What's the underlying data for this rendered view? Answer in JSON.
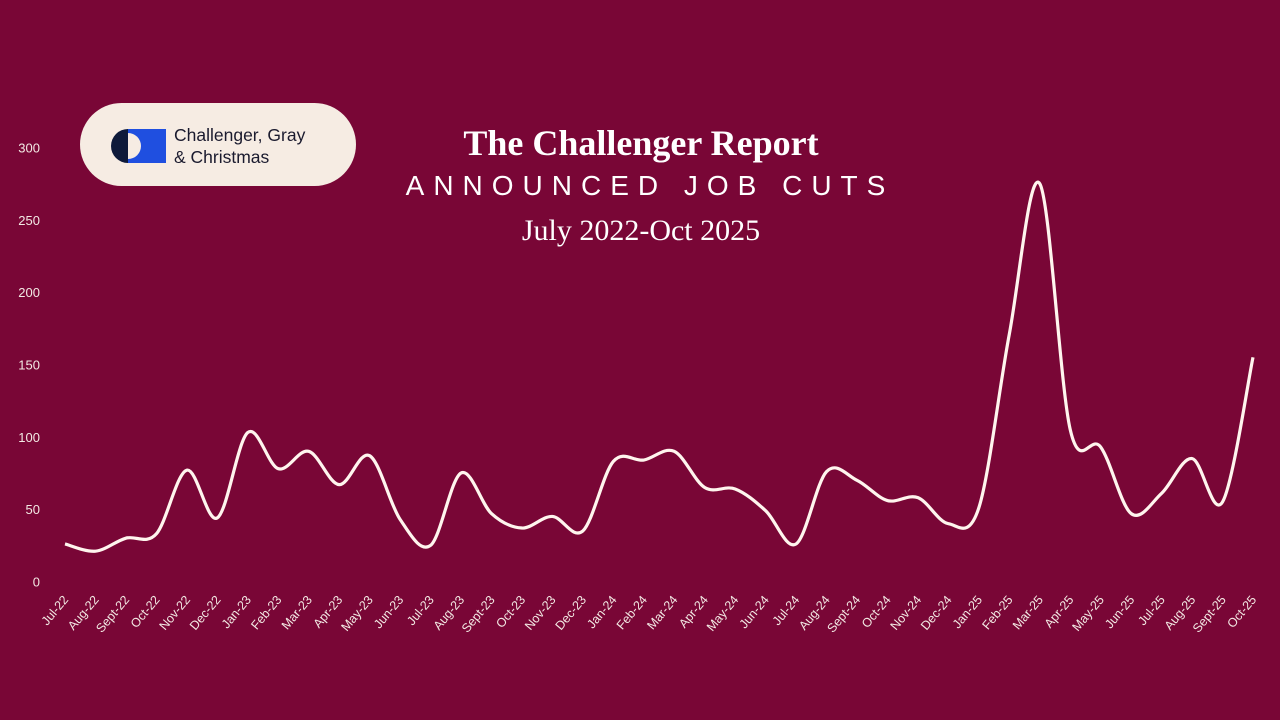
{
  "logo": {
    "line1": "Challenger, Gray",
    "line2": "& Christmas"
  },
  "chart_data": {
    "type": "line",
    "title": "The Challenger Report",
    "subtitle": "ANNOUNCED JOB CUTS",
    "date_range": "July 2022-Oct 2025",
    "color": "#fff5ee",
    "smooth": true,
    "grid": false,
    "categories": [
      "Jul-22",
      "Aug-22",
      "Sept-22",
      "Oct-22",
      "Nov-22",
      "Dec-22",
      "Jan-23",
      "Feb-23",
      "Mar-23",
      "Apr-23",
      "May-23",
      "Jun-23",
      "Jul-23",
      "Aug-23",
      "Sept-23",
      "Oct-23",
      "Nov-23",
      "Dec-23",
      "Jan-24",
      "Feb-24",
      "Mar-24",
      "Apr-24",
      "May-24",
      "Jun-24",
      "Jul-24",
      "Aug-24",
      "Sept-24",
      "Oct-24",
      "Nov-24",
      "Dec-24",
      "Jan-25",
      "Feb-25",
      "Mar-25",
      "Apr-25",
      "May-25",
      "Jun-25",
      "Jul-25",
      "Aug-25",
      "Sept-25",
      "Oct-25"
    ],
    "values": [
      27,
      22,
      31,
      34,
      78,
      45,
      104,
      79,
      91,
      68,
      88,
      44,
      26,
      76,
      48,
      38,
      46,
      36,
      84,
      85,
      91,
      66,
      65,
      50,
      27,
      77,
      71,
      57,
      59,
      41,
      52,
      172,
      276,
      106,
      94,
      48,
      62,
      86,
      56,
      156
    ],
    "ylim": [
      0,
      300
    ],
    "yticks": [
      0,
      50,
      100,
      150,
      200,
      250,
      300
    ]
  }
}
